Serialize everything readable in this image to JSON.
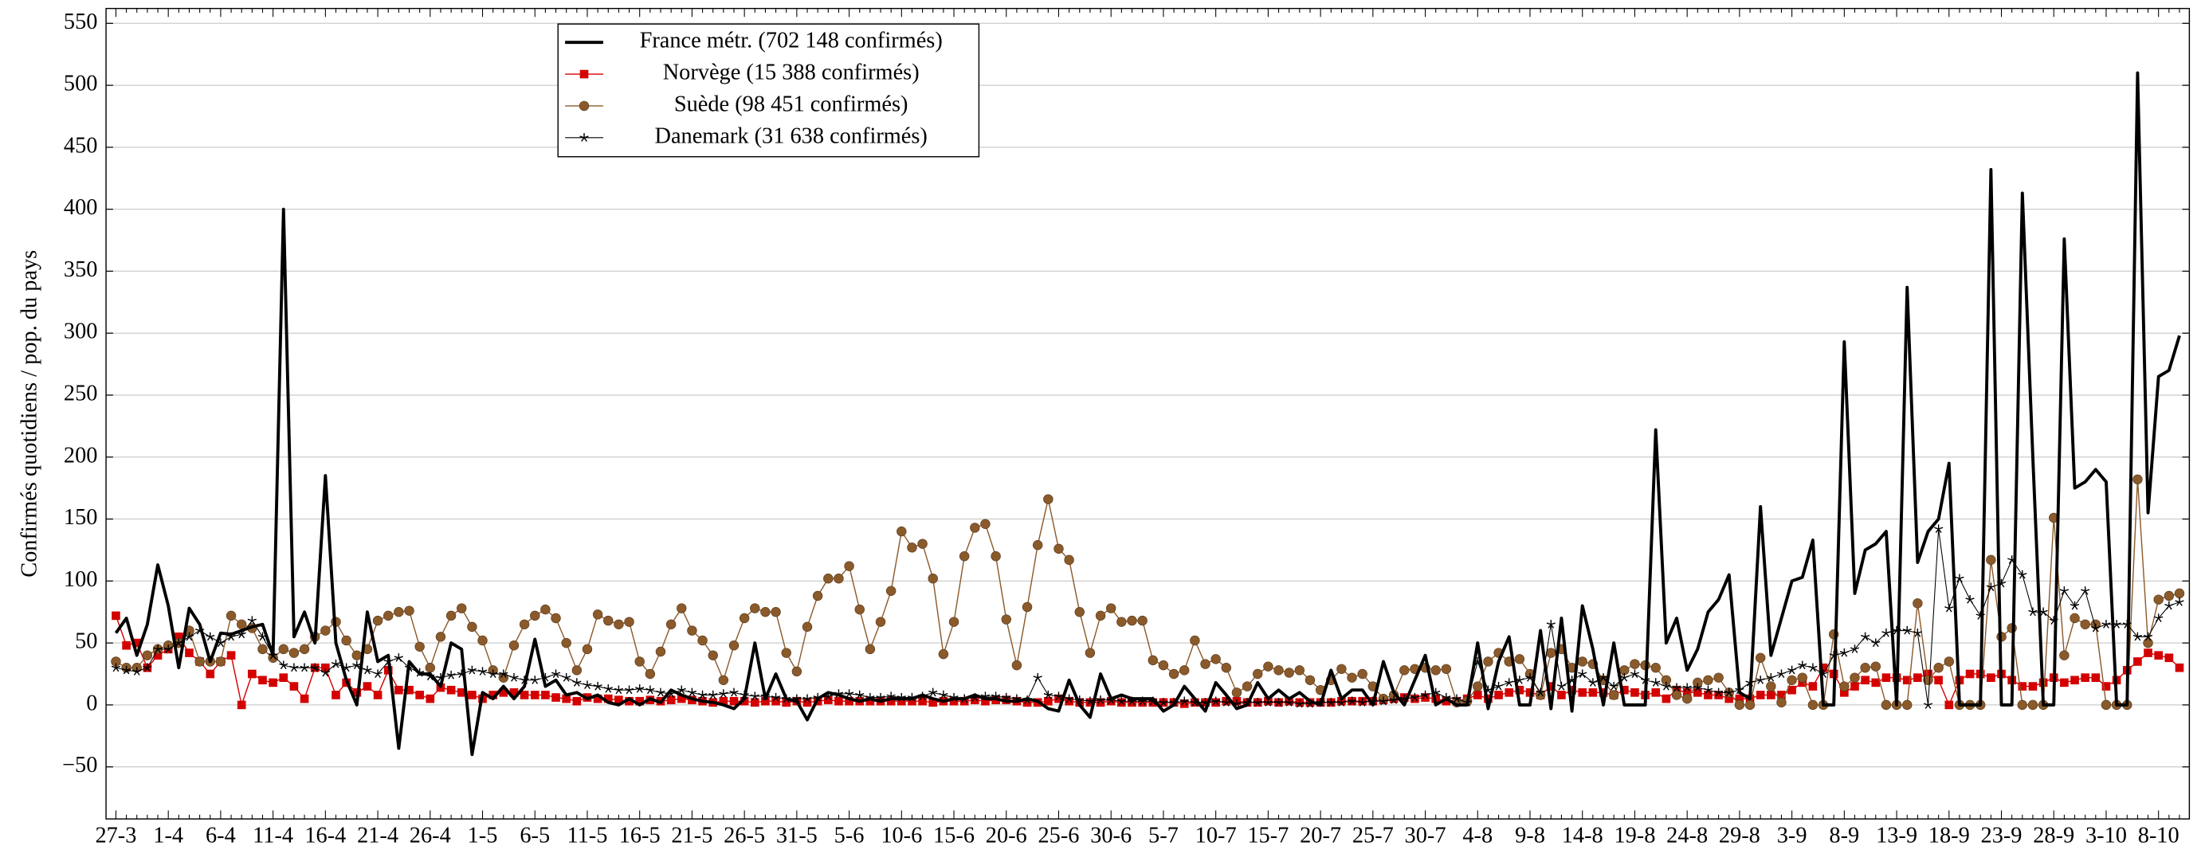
{
  "chart_data": {
    "type": "line",
    "y_label": "Confirmés quotidiens / pop. du pays",
    "categories": [
      "27-3",
      null,
      null,
      null,
      null,
      "1-4",
      null,
      null,
      null,
      null,
      "6-4",
      null,
      null,
      null,
      null,
      "11-4",
      null,
      null,
      null,
      null,
      "16-4",
      null,
      null,
      null,
      null,
      "21-4",
      null,
      null,
      null,
      null,
      "26-4",
      null,
      null,
      null,
      null,
      "1-5",
      null,
      null,
      null,
      null,
      "6-5",
      null,
      null,
      null,
      null,
      "11-5",
      null,
      null,
      null,
      null,
      "16-5",
      null,
      null,
      null,
      null,
      "21-5",
      null,
      null,
      null,
      null,
      "26-5",
      null,
      null,
      null,
      null,
      "31-5",
      null,
      null,
      null,
      null,
      "5-6",
      null,
      null,
      null,
      null,
      "10-6",
      null,
      null,
      null,
      null,
      "15-6",
      null,
      null,
      null,
      null,
      "20-6",
      null,
      null,
      null,
      null,
      "25-6",
      null,
      null,
      null,
      null,
      "30-6",
      null,
      null,
      null,
      null,
      "5-7",
      null,
      null,
      null,
      null,
      "10-7",
      null,
      null,
      null,
      null,
      "15-7",
      null,
      null,
      null,
      null,
      "20-7",
      null,
      null,
      null,
      null,
      "25-7",
      null,
      null,
      null,
      null,
      "30-7",
      null,
      null,
      null,
      null,
      "4-8",
      null,
      null,
      null,
      null,
      "9-8",
      null,
      null,
      null,
      null,
      "14-8",
      null,
      null,
      null,
      null,
      "19-8",
      null,
      null,
      null,
      null,
      "24-8",
      null,
      null,
      null,
      null,
      "29-8",
      null,
      null,
      null,
      null,
      "3-9",
      null,
      null,
      null,
      null,
      "8-9",
      null,
      null,
      null,
      null,
      "13-9",
      null,
      null,
      null,
      null,
      "18-9",
      null,
      null,
      null,
      null,
      "23-9",
      null,
      null,
      null,
      null,
      "28-9",
      null,
      null,
      null,
      null,
      "3-10",
      null,
      null,
      null,
      null,
      "8-10",
      null,
      null
    ],
    "series": [
      {
        "name": "France métr. (702 148 confirmés)",
        "color": "#000000",
        "marker": "none",
        "width": 2.2,
        "values": [
          58,
          70,
          40,
          65,
          113,
          80,
          30,
          78,
          65,
          35,
          58,
          57,
          60,
          63,
          65,
          40,
          400,
          55,
          75,
          50,
          185,
          50,
          20,
          0,
          75,
          35,
          40,
          -35,
          35,
          25,
          25,
          15,
          50,
          45,
          -40,
          10,
          5,
          15,
          5,
          15,
          53,
          15,
          20,
          8,
          10,
          5,
          8,
          2,
          0,
          5,
          0,
          5,
          2,
          12,
          8,
          5,
          3,
          2,
          0,
          -3,
          5,
          50,
          5,
          25,
          5,
          3,
          -12,
          5,
          10,
          8,
          5,
          3,
          5,
          3,
          5,
          5,
          5,
          8,
          5,
          3,
          5,
          5,
          8,
          5,
          5,
          3,
          3,
          5,
          3,
          -3,
          -5,
          20,
          0,
          -10,
          25,
          5,
          8,
          5,
          5,
          5,
          -5,
          0,
          15,
          5,
          -5,
          18,
          8,
          -3,
          0,
          18,
          5,
          12,
          5,
          10,
          3,
          0,
          28,
          5,
          12,
          12,
          0,
          35,
          10,
          0,
          20,
          40,
          0,
          5,
          0,
          0,
          50,
          -3,
          35,
          55,
          0,
          0,
          60,
          -3,
          70,
          -5,
          80,
          45,
          0,
          50,
          0,
          0,
          0,
          222,
          50,
          70,
          28,
          45,
          75,
          85,
          105,
          10,
          5,
          160,
          40,
          70,
          100,
          103,
          133,
          0,
          0,
          293,
          90,
          125,
          130,
          140,
          0,
          337,
          115,
          140,
          150,
          195,
          0,
          0,
          0,
          432,
          0,
          0,
          413,
          200,
          0,
          0,
          376,
          175,
          180,
          190,
          180,
          0,
          0,
          510,
          155,
          265,
          270,
          298
        ]
      },
      {
        "name": "Norvège (15 388 confirmés)",
        "color": "#d40000",
        "marker": "square",
        "width": 0.8,
        "values": [
          72,
          48,
          50,
          30,
          40,
          45,
          55,
          42,
          35,
          25,
          35,
          40,
          0,
          25,
          20,
          18,
          22,
          15,
          5,
          30,
          30,
          8,
          18,
          10,
          15,
          8,
          28,
          12,
          12,
          8,
          5,
          14,
          12,
          10,
          8,
          5,
          8,
          10,
          10,
          8,
          8,
          8,
          6,
          5,
          3,
          6,
          5,
          5,
          4,
          3,
          3,
          4,
          3,
          4,
          5,
          4,
          3,
          2,
          3,
          3,
          3,
          2,
          3,
          3,
          2,
          3,
          2,
          3,
          4,
          3,
          3,
          3,
          3,
          3,
          3,
          3,
          3,
          3,
          2,
          3,
          3,
          3,
          4,
          3,
          4,
          4,
          3,
          2,
          2,
          3,
          5,
          3,
          2,
          2,
          2,
          3,
          2,
          2,
          2,
          2,
          2,
          2,
          1,
          2,
          2,
          2,
          3,
          3,
          2,
          2,
          3,
          2,
          3,
          2,
          2,
          2,
          2,
          3,
          3,
          3,
          3,
          4,
          5,
          6,
          5,
          6,
          5,
          3,
          3,
          5,
          8,
          5,
          8,
          10,
          12,
          10,
          8,
          15,
          8,
          12,
          10,
          10,
          10,
          8,
          12,
          10,
          8,
          10,
          5,
          12,
          10,
          10,
          8,
          8,
          5,
          5,
          5,
          8,
          8,
          8,
          12,
          18,
          15,
          30,
          25,
          10,
          15,
          20,
          18,
          22,
          22,
          20,
          22,
          25,
          20,
          0,
          20,
          25,
          25,
          22,
          25,
          20,
          15,
          15,
          18,
          22,
          18,
          20,
          22,
          22,
          15,
          20,
          28,
          35,
          42,
          40,
          38,
          30
        ]
      },
      {
        "name": "Suède (98 451 confirmés)",
        "color": "#8b5a2b",
        "marker": "circle",
        "width": 0.8,
        "values": [
          35,
          30,
          30,
          40,
          45,
          48,
          50,
          60,
          35,
          35,
          35,
          72,
          65,
          62,
          45,
          38,
          45,
          42,
          45,
          55,
          60,
          67,
          52,
          40,
          45,
          68,
          72,
          75,
          76,
          47,
          30,
          55,
          72,
          78,
          63,
          52,
          28,
          22,
          48,
          65,
          72,
          77,
          70,
          50,
          28,
          45,
          73,
          68,
          65,
          67,
          35,
          25,
          43,
          65,
          78,
          60,
          52,
          40,
          20,
          48,
          70,
          78,
          75,
          75,
          42,
          27,
          63,
          88,
          102,
          102,
          112,
          77,
          45,
          67,
          92,
          140,
          127,
          130,
          102,
          41,
          67,
          120,
          143,
          146,
          120,
          69,
          32,
          79,
          129,
          166,
          126,
          117,
          75,
          42,
          72,
          78,
          67,
          68,
          68,
          36,
          32,
          25,
          28,
          52,
          33,
          37,
          30,
          10,
          15,
          25,
          31,
          28,
          26,
          28,
          20,
          12,
          20,
          29,
          22,
          25,
          15,
          5,
          8,
          28,
          29,
          30,
          28,
          29,
          2,
          3,
          15,
          35,
          42,
          35,
          37,
          25,
          8,
          42,
          45,
          30,
          35,
          33,
          20,
          8,
          28,
          33,
          32,
          30,
          20,
          8,
          5,
          18,
          20,
          22,
          10,
          0,
          0,
          38,
          15,
          2,
          20,
          22,
          0,
          0,
          57,
          15,
          22,
          30,
          31,
          0,
          0,
          0,
          82,
          20,
          30,
          35,
          0,
          0,
          0,
          117,
          55,
          62,
          0,
          0,
          0,
          151,
          40,
          70,
          65,
          65,
          0,
          0,
          0,
          182,
          50,
          85,
          88,
          90
        ]
      },
      {
        "name": "Danemark (31 638 confirmés)",
        "color": "#000000",
        "marker": "star",
        "width": 0.6,
        "values": [
          30,
          28,
          27,
          30,
          45,
          45,
          50,
          55,
          60,
          55,
          50,
          55,
          57,
          68,
          55,
          40,
          32,
          30,
          30,
          30,
          26,
          33,
          30,
          32,
          28,
          25,
          35,
          38,
          30,
          26,
          23,
          22,
          24,
          25,
          28,
          27,
          25,
          25,
          22,
          20,
          20,
          22,
          25,
          22,
          18,
          16,
          15,
          13,
          12,
          12,
          13,
          12,
          10,
          9,
          12,
          10,
          8,
          8,
          9,
          10,
          8,
          7,
          7,
          6,
          5,
          5,
          5,
          6,
          7,
          9,
          9,
          8,
          6,
          6,
          7,
          6,
          6,
          7,
          10,
          8,
          6,
          5,
          6,
          7,
          7,
          6,
          5,
          4,
          22,
          8,
          7,
          5,
          4,
          3,
          4,
          4,
          3,
          3,
          3,
          3,
          2,
          2,
          3,
          2,
          2,
          3,
          2,
          1,
          2,
          2,
          2,
          2,
          2,
          1,
          1,
          2,
          2,
          2,
          3,
          2,
          3,
          3,
          4,
          5,
          6,
          8,
          10,
          6,
          5,
          2,
          35,
          12,
          15,
          18,
          20,
          22,
          10,
          65,
          15,
          20,
          25,
          18,
          22,
          15,
          22,
          25,
          20,
          18,
          15,
          14,
          14,
          14,
          12,
          10,
          10,
          12,
          18,
          20,
          22,
          25,
          28,
          32,
          30,
          25,
          40,
          42,
          45,
          55,
          50,
          58,
          60,
          60,
          58,
          0,
          142,
          78,
          102,
          85,
          72,
          95,
          98,
          117,
          105,
          75,
          75,
          68,
          92,
          80,
          92,
          62,
          65,
          65,
          65,
          55,
          55,
          70,
          80,
          83
        ]
      }
    ],
    "ylim": [
      -92,
      562
    ],
    "yticks": [
      {
        "value": -50,
        "label": "−50"
      },
      0,
      50,
      100,
      150,
      200,
      250,
      300,
      350,
      400,
      450,
      500,
      550
    ],
    "grid": true,
    "legend": "upper left"
  }
}
